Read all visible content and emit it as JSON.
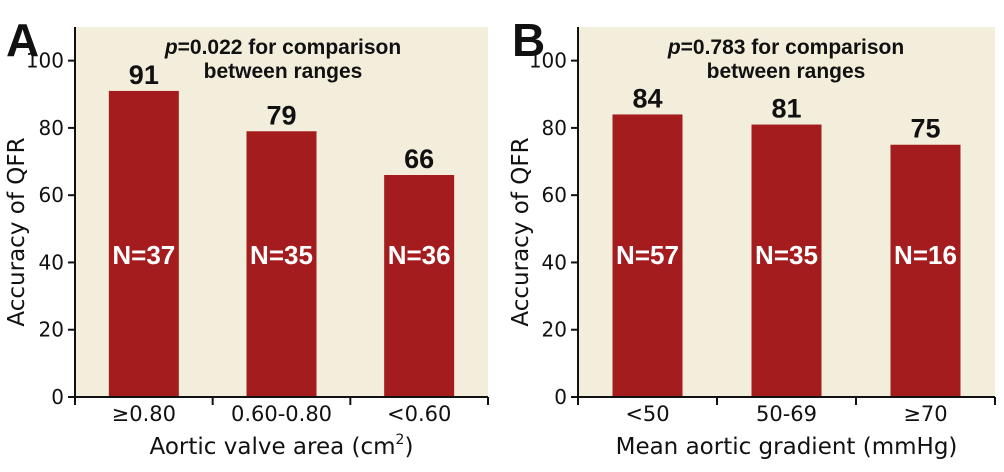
{
  "colors": {
    "plot_background": "#f3eedb",
    "bar": "#a51c1f",
    "axis": "#111111"
  },
  "chart_data": [
    {
      "panel": "A",
      "type": "bar",
      "annotation": {
        "p_symbol": "p",
        "p_text": "=0.022 for comparison",
        "line2": "between ranges"
      },
      "categories": [
        "≥0.80",
        "0.60-0.80",
        "<0.60"
      ],
      "values": [
        91,
        79,
        66
      ],
      "value_labels": [
        "91",
        "79",
        "66"
      ],
      "n_labels": [
        "N=37",
        "N=35",
        "N=36"
      ],
      "xlabel": "Aortic valve area (cm",
      "xlabel_sup": "2",
      "xlabel_end": ")",
      "ylabel": "Accuracy of QFR",
      "ylim": [
        0,
        110
      ],
      "yticks": [
        0,
        20,
        40,
        60,
        80,
        100
      ]
    },
    {
      "panel": "B",
      "type": "bar",
      "annotation": {
        "p_symbol": "p",
        "p_text": "=0.783 for comparison",
        "line2": "between ranges"
      },
      "categories": [
        "<50",
        "50-69",
        "≥70"
      ],
      "values": [
        84,
        81,
        75
      ],
      "value_labels": [
        "84",
        "81",
        "75"
      ],
      "n_labels": [
        "N=57",
        "N=35",
        "N=16"
      ],
      "xlabel": "Mean aortic gradient (mmHg)",
      "xlabel_sup": "",
      "xlabel_end": "",
      "ylabel": "Accuracy of QFR",
      "ylim": [
        0,
        110
      ],
      "yticks": [
        0,
        20,
        40,
        60,
        80,
        100
      ]
    }
  ]
}
